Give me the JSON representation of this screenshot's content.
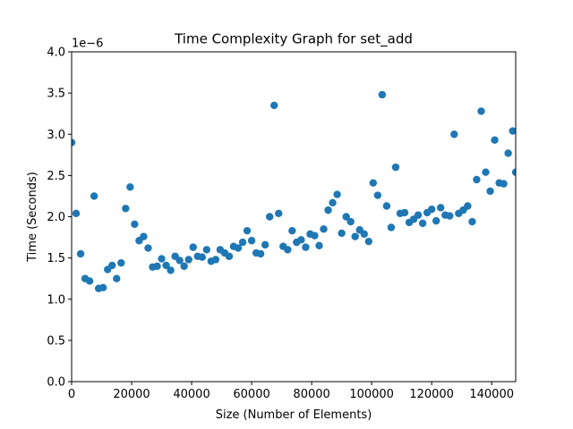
{
  "chart_data": {
    "type": "scatter",
    "title": "Time Complexity Graph for set_add",
    "xlabel": "Size (Number of Elements)",
    "ylabel": "Time (Seconds)",
    "y_scale_label": "1e−6",
    "xlim": [
      0,
      148000
    ],
    "ylim": [
      0.0,
      4.0
    ],
    "x_ticks": [
      0,
      20000,
      40000,
      60000,
      80000,
      100000,
      120000,
      140000
    ],
    "x_tick_labels": [
      "0",
      "20000",
      "40000",
      "60000",
      "80000",
      "100000",
      "120000",
      "140000"
    ],
    "y_ticks": [
      0.0,
      0.5,
      1.0,
      1.5,
      2.0,
      2.5,
      3.0,
      3.5,
      4.0
    ],
    "y_tick_labels": [
      "0.0",
      "0.5",
      "1.0",
      "1.5",
      "2.0",
      "2.5",
      "3.0",
      "3.5",
      "4.0"
    ],
    "grid": false,
    "marker_color": "#1f77b4",
    "series": [
      {
        "points": [
          [
            0,
            2.9
          ],
          [
            1500,
            2.04
          ],
          [
            3000,
            1.55
          ],
          [
            4500,
            1.25
          ],
          [
            6000,
            1.22
          ],
          [
            7500,
            2.25
          ],
          [
            9000,
            1.13
          ],
          [
            10500,
            1.14
          ],
          [
            12000,
            1.36
          ],
          [
            13500,
            1.41
          ],
          [
            15000,
            1.25
          ],
          [
            16500,
            1.44
          ],
          [
            18000,
            2.1
          ],
          [
            19500,
            2.36
          ],
          [
            21000,
            1.91
          ],
          [
            22500,
            1.71
          ],
          [
            24000,
            1.76
          ],
          [
            25500,
            1.62
          ],
          [
            27000,
            1.39
          ],
          [
            28500,
            1.4
          ],
          [
            30000,
            1.49
          ],
          [
            31500,
            1.41
          ],
          [
            33000,
            1.35
          ],
          [
            34500,
            1.52
          ],
          [
            36000,
            1.47
          ],
          [
            37500,
            1.4
          ],
          [
            39000,
            1.48
          ],
          [
            40500,
            1.63
          ],
          [
            42000,
            1.52
          ],
          [
            43500,
            1.51
          ],
          [
            45000,
            1.6
          ],
          [
            46500,
            1.46
          ],
          [
            48000,
            1.48
          ],
          [
            49500,
            1.6
          ],
          [
            51000,
            1.56
          ],
          [
            52500,
            1.52
          ],
          [
            54000,
            1.64
          ],
          [
            55500,
            1.62
          ],
          [
            57000,
            1.69
          ],
          [
            58500,
            1.83
          ],
          [
            60000,
            1.71
          ],
          [
            61500,
            1.56
          ],
          [
            63000,
            1.55
          ],
          [
            64500,
            1.66
          ],
          [
            66000,
            2.0
          ],
          [
            67500,
            3.35
          ],
          [
            69000,
            2.04
          ],
          [
            70500,
            1.64
          ],
          [
            72000,
            1.6
          ],
          [
            73500,
            1.83
          ],
          [
            75000,
            1.69
          ],
          [
            76500,
            1.72
          ],
          [
            78000,
            1.63
          ],
          [
            79500,
            1.79
          ],
          [
            81000,
            1.77
          ],
          [
            82500,
            1.65
          ],
          [
            84000,
            1.85
          ],
          [
            85500,
            2.08
          ],
          [
            87000,
            2.17
          ],
          [
            88500,
            2.27
          ],
          [
            90000,
            1.8
          ],
          [
            91500,
            2.0
          ],
          [
            93000,
            1.94
          ],
          [
            94500,
            1.76
          ],
          [
            96000,
            1.84
          ],
          [
            97500,
            1.79
          ],
          [
            99000,
            1.7
          ],
          [
            100500,
            2.41
          ],
          [
            102000,
            2.26
          ],
          [
            103500,
            3.48
          ],
          [
            105000,
            2.13
          ],
          [
            106500,
            1.87
          ],
          [
            108000,
            2.6
          ],
          [
            109500,
            2.04
          ],
          [
            111000,
            2.05
          ],
          [
            112500,
            1.93
          ],
          [
            114000,
            1.97
          ],
          [
            115500,
            2.02
          ],
          [
            117000,
            1.92
          ],
          [
            118500,
            2.05
          ],
          [
            120000,
            2.09
          ],
          [
            121500,
            1.95
          ],
          [
            123000,
            2.11
          ],
          [
            124500,
            2.02
          ],
          [
            126000,
            2.01
          ],
          [
            127500,
            3.0
          ],
          [
            129000,
            2.04
          ],
          [
            130500,
            2.08
          ],
          [
            132000,
            2.13
          ],
          [
            133500,
            1.94
          ],
          [
            135000,
            2.45
          ],
          [
            136500,
            3.28
          ],
          [
            138000,
            2.54
          ],
          [
            139500,
            2.31
          ],
          [
            141000,
            2.93
          ],
          [
            142500,
            2.41
          ],
          [
            144000,
            2.4
          ],
          [
            145500,
            2.77
          ],
          [
            147000,
            3.04
          ],
          [
            148000,
            2.54
          ]
        ]
      }
    ]
  }
}
